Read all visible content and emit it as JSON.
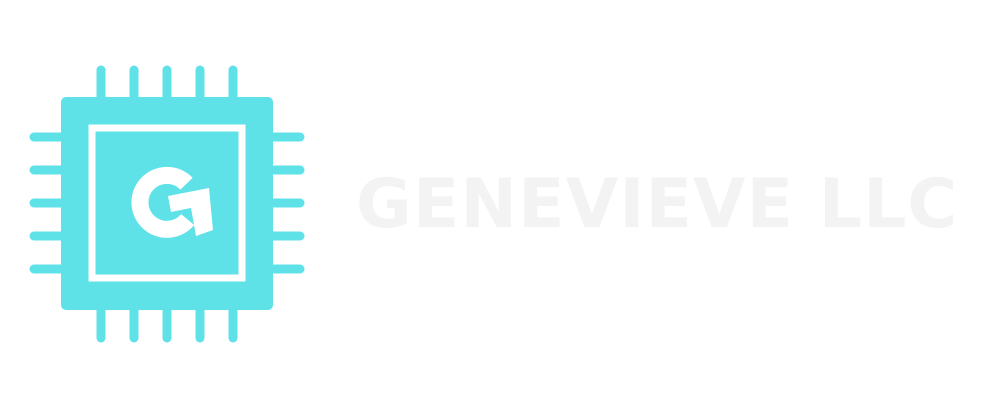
{
  "brand": {
    "name": "GENEVIEVE LLC",
    "icon": "microchip-g-logo-icon",
    "icon_monogram": "G"
  },
  "colors": {
    "chip": "#5ee2e8",
    "text": "#f3f3f3",
    "background": "#ffffff"
  }
}
